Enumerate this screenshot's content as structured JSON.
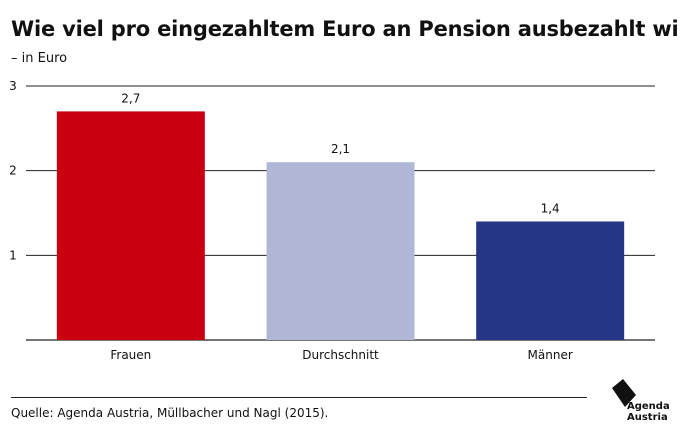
{
  "header": {
    "title": "Wie viel pro eingezahltem Euro an Pension ausbezahlt wird",
    "subtitle": "– in Euro"
  },
  "footer": {
    "source": "Quelle: Agenda Austria, Müllbacher und Nagl (2015)."
  },
  "logo": {
    "line1": "Agenda",
    "line2": "Austria"
  },
  "chart_data": {
    "type": "bar",
    "categories": [
      "Frauen",
      "Durchschnitt",
      "Männer"
    ],
    "values": [
      2.7,
      2.1,
      1.4
    ],
    "value_labels": [
      "2,7",
      "2,1",
      "1,4"
    ],
    "colors": [
      "#c8000f",
      "#b1b7d6",
      "#263686"
    ],
    "ylim": [
      0,
      3
    ],
    "yticks": [
      "1",
      "2",
      "3"
    ],
    "grid": true,
    "title": "Wie viel pro eingezahltem Euro an Pension ausbezahlt wird",
    "subtitle": "– in Euro"
  }
}
